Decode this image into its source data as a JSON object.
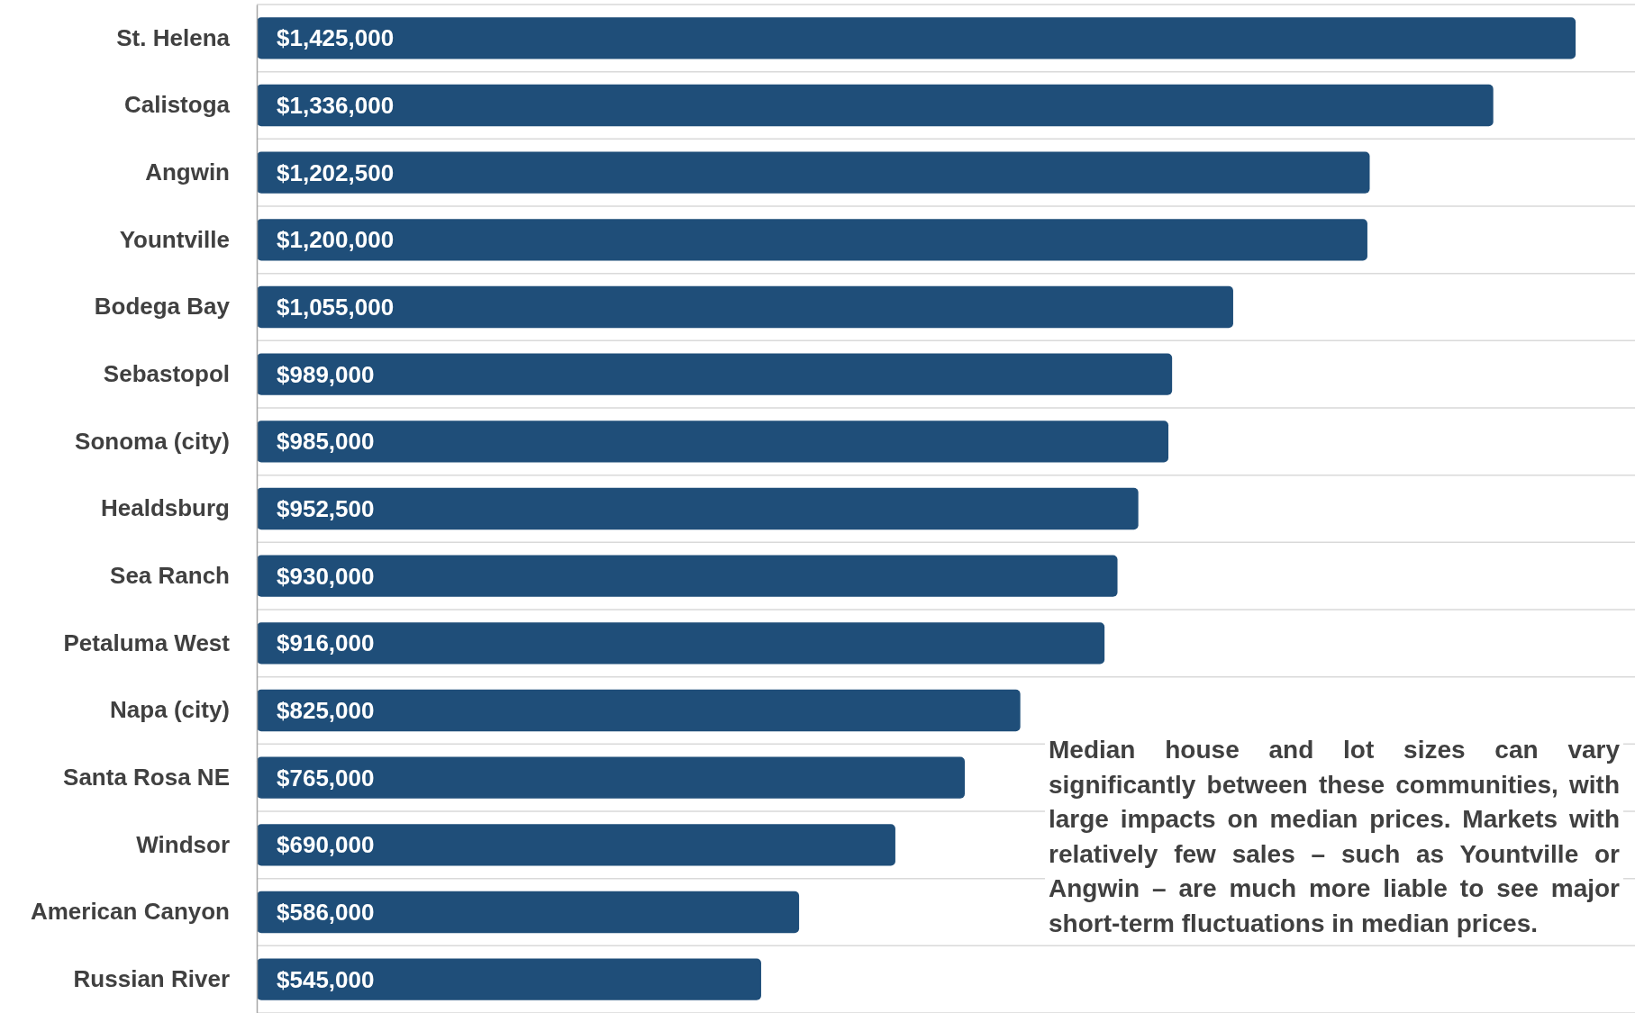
{
  "chart_data": {
    "type": "bar",
    "orientation": "horizontal",
    "grid": "y",
    "tick_labels": "y",
    "categories": [
      "St. Helena",
      "Calistoga",
      "Angwin",
      "Yountville",
      "Bodega Bay",
      "Sebastopol",
      "Sonoma (city)",
      "Healdsburg",
      "Sea Ranch",
      "Petaluma West",
      "Napa (city)",
      "Santa Rosa NE",
      "Windsor",
      "American Canyon",
      "Russian River"
    ],
    "values": [
      1425000,
      1336000,
      1202500,
      1200000,
      1055000,
      989000,
      985000,
      952500,
      930000,
      916000,
      825000,
      765000,
      690000,
      586000,
      545000
    ],
    "value_labels": [
      "$1,425,000",
      "$1,336,000",
      "$1,202,500",
      "$1,200,000",
      "$1,055,000",
      "$989,000",
      "$985,000",
      "$952,500",
      "$930,000",
      "$916,000",
      "$825,000",
      "$765,000",
      "$690,000",
      "$586,000",
      "$545,000"
    ],
    "color": "#1f4e79",
    "annotations": [
      "Median house and lot sizes can vary significantly between these communities, with large impacts on median prices. Markets with relatively few sales – such as Yountville or Angwin – are much more  liable to see major short-term fluctuations in median prices."
    ]
  }
}
